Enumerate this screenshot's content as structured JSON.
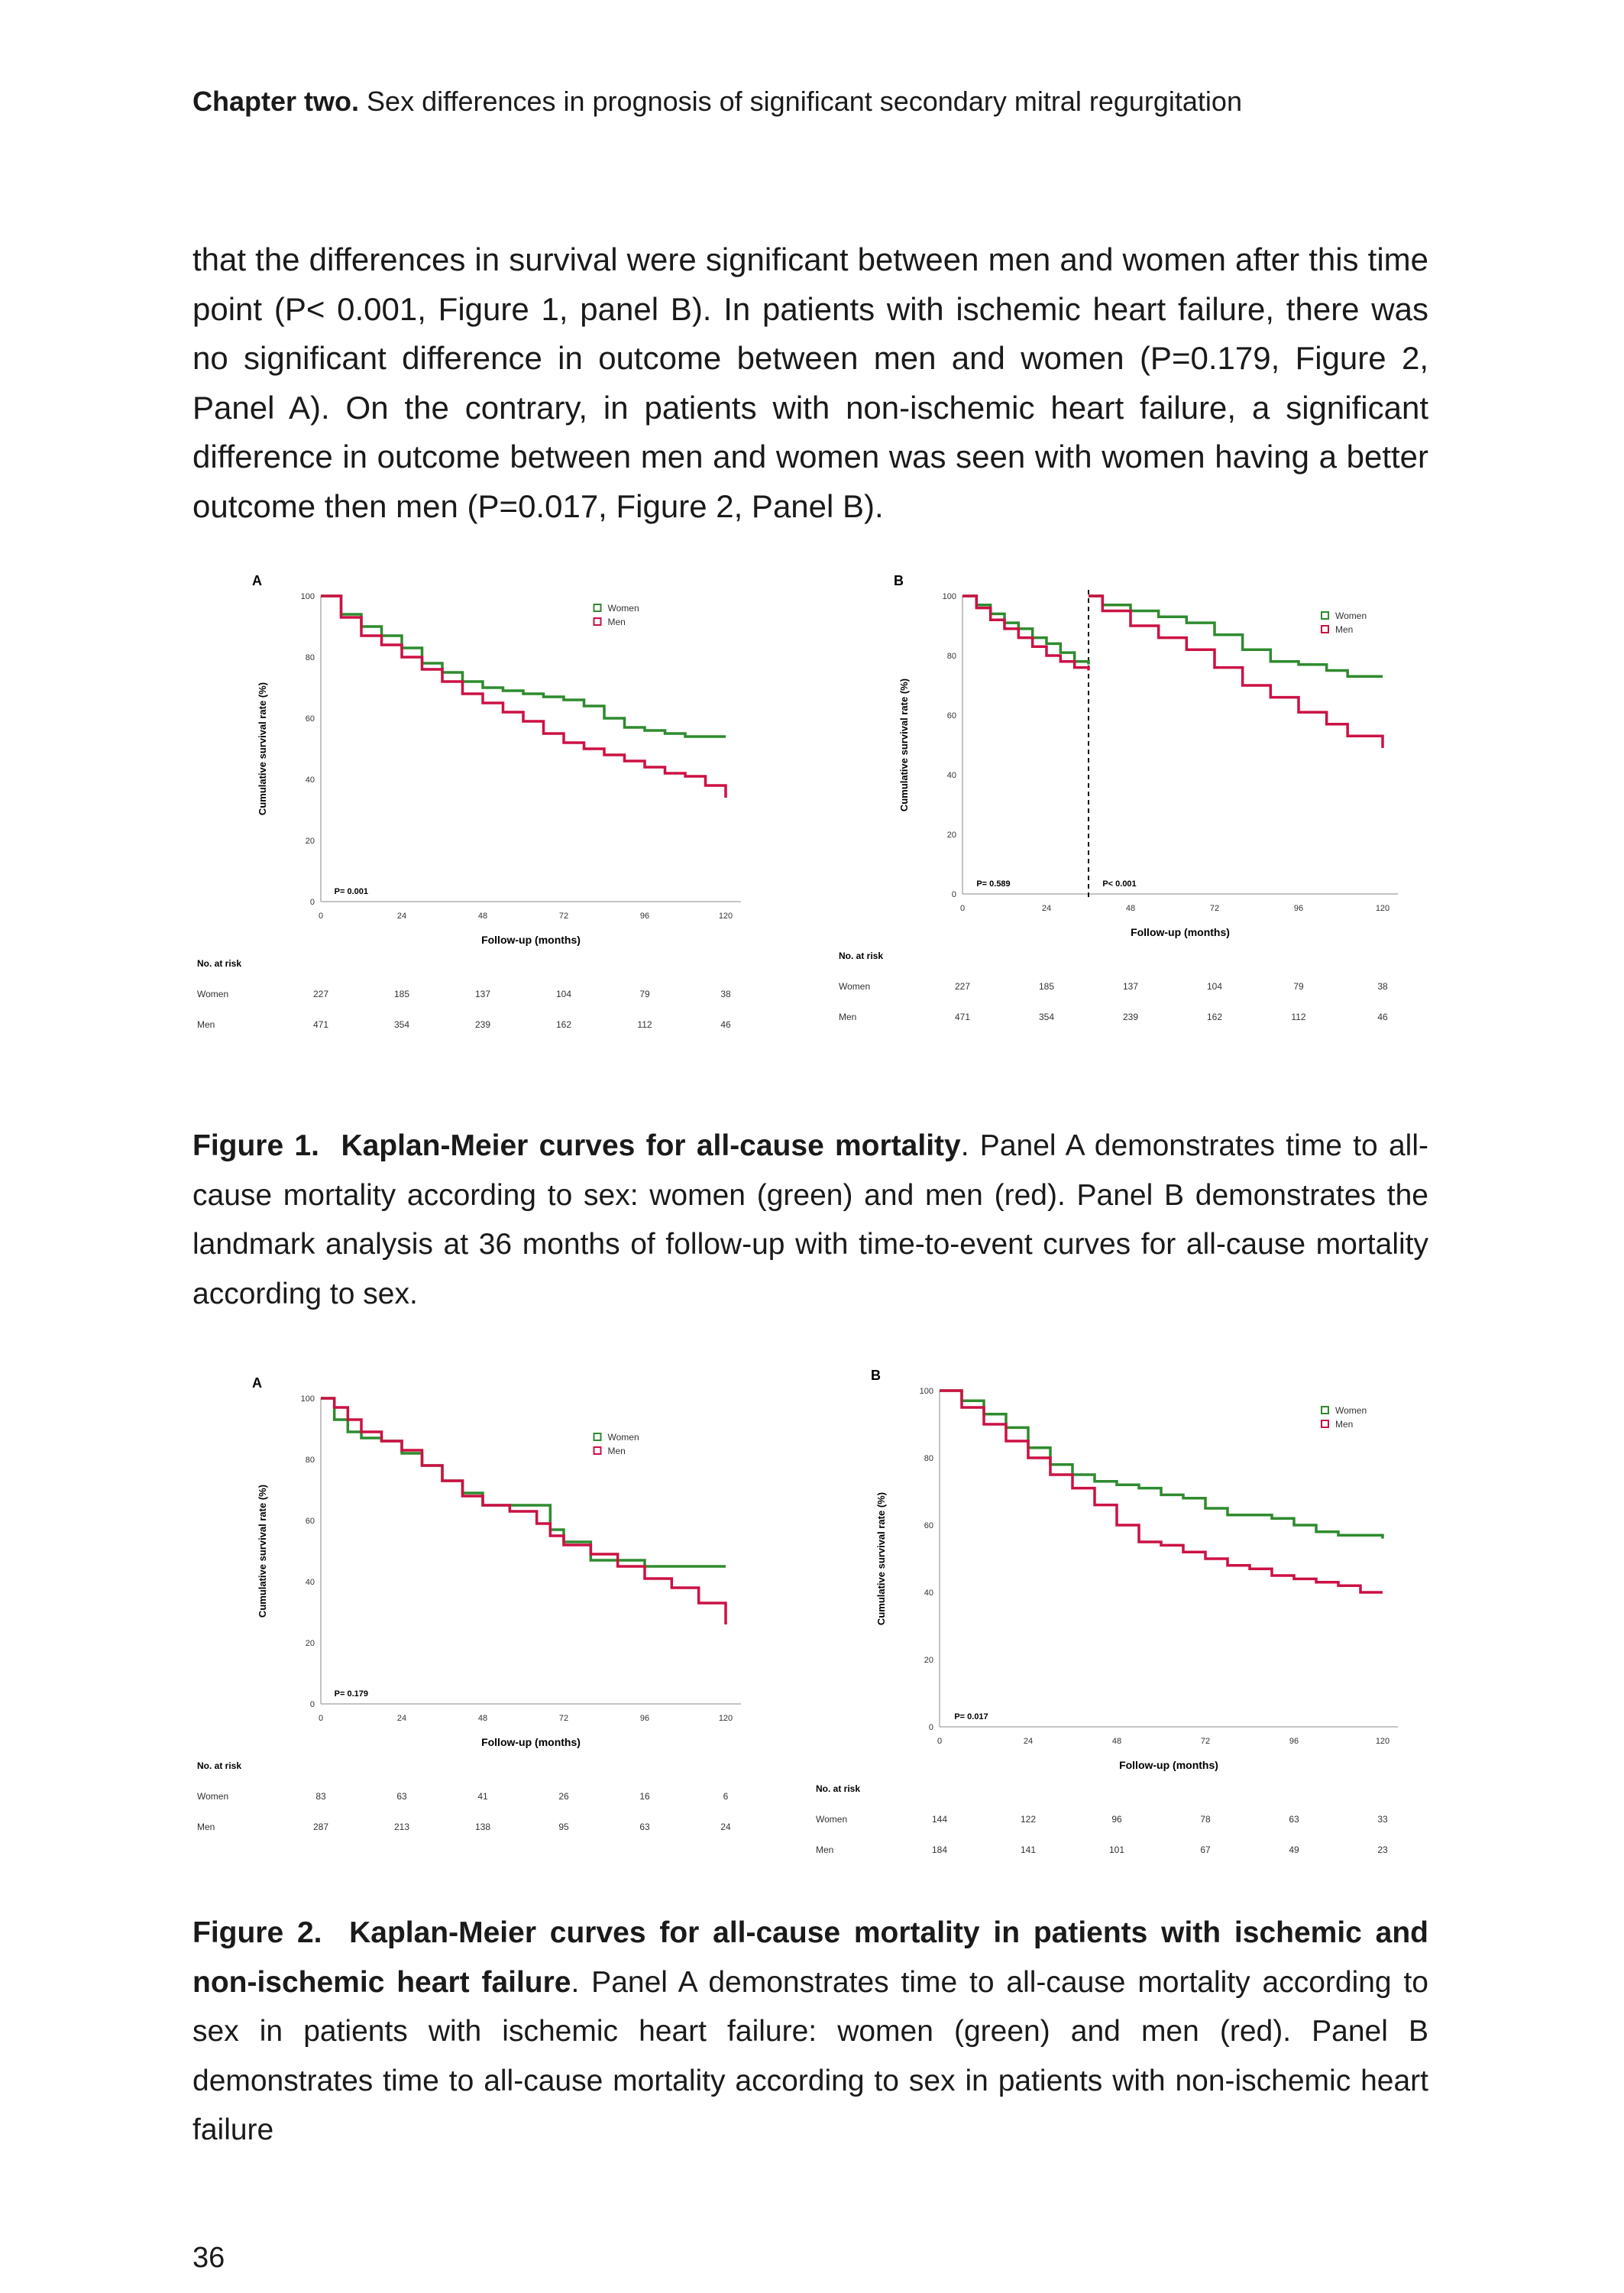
{
  "header": {
    "chapter": "Chapter two.",
    "title": "Sex differences in prognosis of significant secondary mitral regurgitation"
  },
  "body": {
    "paragraph": "that the differences in survival were significant between men and women after this time point (P< 0.001, Figure 1, panel B). In patients with ischemic heart failure, there was no significant difference in outcome between men and women (P=0.179, Figure 2, Panel A). On the contrary, in patients with non-ischemic heart failure, a significant difference in outcome between men and women was seen with women having a better outcome then men (P=0.017, Figure 2, Panel B)."
  },
  "figure1": {
    "caption_label": "Figure 1.",
    "caption_title": "Kaplan-Meier curves for all-cause mortality",
    "caption_text": ". Panel A demonstrates time to all-cause mortality according to sex: women (green) and men (red). Panel B demonstrates the landmark analysis at 36 months of follow-up with time-to-event curves for all-cause mortality according to sex."
  },
  "figure2": {
    "caption_label": "Figure 2.",
    "caption_title": "Kaplan-Meier curves for all-cause mortality in patients with ischemic and non-ischemic heart failure",
    "caption_text": ". Panel A demonstrates time to all-cause mortality according to sex in patients with ischemic heart failure: women (green) and men (red). Panel B demonstrates time to all-cause mortality according to sex in patients with non-ischemic heart failure"
  },
  "page_number": "36",
  "colors": {
    "women": "#2e8b2e",
    "men": "#cc1144",
    "axis": "#888888"
  },
  "chart_data": [
    {
      "id": "fig1A",
      "type": "line",
      "panel_label": "A",
      "ylabel": "Cumulative survival rate (%)",
      "xlabel": "Follow-up (months)",
      "xlim": [
        0,
        120
      ],
      "ylim": [
        0,
        100
      ],
      "xticks": [
        0,
        24,
        48,
        72,
        96,
        120
      ],
      "yticks": [
        0,
        20,
        40,
        60,
        80,
        100
      ],
      "p_labels": [
        {
          "text": "P= 0.001",
          "x": 4
        }
      ],
      "legend": [
        "Women",
        "Men"
      ],
      "series": [
        {
          "name": "Women",
          "x": [
            0,
            6,
            12,
            18,
            24,
            30,
            36,
            42,
            48,
            54,
            60,
            66,
            72,
            78,
            84,
            90,
            96,
            102,
            108,
            114,
            120
          ],
          "y": [
            100,
            94,
            90,
            87,
            83,
            78,
            75,
            72,
            70,
            69,
            68,
            67,
            66,
            64,
            60,
            57,
            56,
            55,
            54,
            54,
            54
          ]
        },
        {
          "name": "Men",
          "x": [
            0,
            6,
            12,
            18,
            24,
            30,
            36,
            42,
            48,
            54,
            60,
            66,
            72,
            78,
            84,
            90,
            96,
            102,
            108,
            114,
            120
          ],
          "y": [
            100,
            93,
            87,
            84,
            80,
            76,
            72,
            68,
            65,
            62,
            59,
            55,
            52,
            50,
            48,
            46,
            44,
            42,
            41,
            38,
            34
          ]
        }
      ],
      "risk_table": {
        "title": "No. at risk",
        "rows": [
          {
            "label": "Women",
            "values": [
              "227",
              "185",
              "137",
              "104",
              "79",
              "38"
            ]
          },
          {
            "label": "Men",
            "values": [
              "471",
              "354",
              "239",
              "162",
              "112",
              "46"
            ]
          }
        ]
      }
    },
    {
      "id": "fig1B",
      "type": "line",
      "panel_label": "B",
      "ylabel": "Cumulative survival rate (%)",
      "xlabel": "Follow-up (months)",
      "xlim": [
        0,
        120
      ],
      "ylim": [
        0,
        100
      ],
      "xticks": [
        0,
        24,
        48,
        72,
        96,
        120
      ],
      "yticks": [
        0,
        20,
        40,
        60,
        80,
        100
      ],
      "landmark": 36,
      "p_labels": [
        {
          "text": "P= 0.589",
          "x": 4
        },
        {
          "text": "P< 0.001",
          "x": 40
        }
      ],
      "legend": [
        "Women",
        "Men"
      ],
      "series": [
        {
          "name": "Women",
          "x": [
            0,
            4,
            8,
            12,
            16,
            20,
            24,
            28,
            32,
            36
          ],
          "y": [
            100,
            97,
            94,
            91,
            89,
            86,
            84,
            81,
            78,
            77
          ]
        },
        {
          "name": "Men",
          "x": [
            0,
            4,
            8,
            12,
            16,
            20,
            24,
            28,
            32,
            36
          ],
          "y": [
            100,
            96,
            92,
            89,
            86,
            83,
            80,
            78,
            76,
            75
          ]
        },
        {
          "name": "Women",
          "x": [
            36,
            40,
            48,
            56,
            64,
            72,
            80,
            88,
            96,
            104,
            110,
            120
          ],
          "y": [
            100,
            97,
            95,
            93,
            91,
            87,
            82,
            78,
            77,
            75,
            73,
            73
          ]
        },
        {
          "name": "Men",
          "x": [
            36,
            40,
            48,
            56,
            64,
            72,
            80,
            88,
            96,
            104,
            110,
            120
          ],
          "y": [
            100,
            95,
            90,
            86,
            82,
            76,
            70,
            66,
            61,
            57,
            53,
            49
          ]
        }
      ],
      "risk_table": {
        "title": "No. at risk",
        "rows": [
          {
            "label": "Women",
            "values": [
              "227",
              "185",
              "137",
              "104",
              "79",
              "38"
            ]
          },
          {
            "label": "Men",
            "values": [
              "471",
              "354",
              "239",
              "162",
              "112",
              "46"
            ]
          }
        ]
      }
    },
    {
      "id": "fig2A",
      "type": "line",
      "panel_label": "A",
      "ylabel": "Cumulative survival rate (%)",
      "xlabel": "Follow-up (months)",
      "xlim": [
        0,
        120
      ],
      "ylim": [
        0,
        100
      ],
      "xticks": [
        0,
        24,
        48,
        72,
        96,
        120
      ],
      "yticks": [
        0,
        20,
        40,
        60,
        80,
        100
      ],
      "p_labels": [
        {
          "text": "P= 0.179",
          "x": 4
        }
      ],
      "legend": [
        "Women",
        "Men"
      ],
      "series": [
        {
          "name": "Women",
          "x": [
            0,
            4,
            8,
            12,
            18,
            24,
            30,
            36,
            42,
            48,
            56,
            64,
            68,
            72,
            80,
            88,
            96,
            104,
            112,
            120
          ],
          "y": [
            100,
            93,
            89,
            87,
            86,
            82,
            78,
            73,
            69,
            65,
            65,
            65,
            57,
            53,
            47,
            47,
            45,
            45,
            45,
            45
          ]
        },
        {
          "name": "Men",
          "x": [
            0,
            4,
            8,
            12,
            18,
            24,
            30,
            36,
            42,
            48,
            56,
            64,
            68,
            72,
            80,
            88,
            96,
            104,
            112,
            120
          ],
          "y": [
            100,
            97,
            93,
            89,
            86,
            83,
            78,
            73,
            68,
            65,
            63,
            59,
            55,
            52,
            49,
            45,
            41,
            38,
            33,
            26
          ]
        }
      ],
      "risk_table": {
        "title": "No. at risk",
        "rows": [
          {
            "label": "Women",
            "values": [
              "83",
              "63",
              "41",
              "26",
              "16",
              "6"
            ]
          },
          {
            "label": "Men",
            "values": [
              "287",
              "213",
              "138",
              "95",
              "63",
              "24"
            ]
          }
        ]
      }
    },
    {
      "id": "fig2B",
      "type": "line",
      "panel_label": "B",
      "ylabel": "Cumulative survival rate (%)",
      "xlabel": "Follow-up (months)",
      "xlim": [
        0,
        120
      ],
      "ylim": [
        0,
        100
      ],
      "xticks": [
        0,
        24,
        48,
        72,
        96,
        120
      ],
      "yticks": [
        0,
        20,
        40,
        60,
        80,
        100
      ],
      "p_labels": [
        {
          "text": "P= 0.017",
          "x": 4
        }
      ],
      "legend": [
        "Women",
        "Men"
      ],
      "series": [
        {
          "name": "Women",
          "x": [
            0,
            6,
            12,
            18,
            24,
            30,
            36,
            42,
            48,
            54,
            60,
            66,
            72,
            78,
            84,
            90,
            96,
            102,
            108,
            114,
            120
          ],
          "y": [
            100,
            97,
            93,
            89,
            83,
            78,
            75,
            73,
            72,
            71,
            69,
            68,
            65,
            63,
            63,
            62,
            60,
            58,
            57,
            57,
            56
          ]
        },
        {
          "name": "Men",
          "x": [
            0,
            6,
            12,
            18,
            24,
            30,
            36,
            42,
            48,
            54,
            60,
            66,
            72,
            78,
            84,
            90,
            96,
            102,
            108,
            114,
            120
          ],
          "y": [
            100,
            95,
            90,
            85,
            80,
            75,
            71,
            66,
            60,
            55,
            54,
            52,
            50,
            48,
            47,
            45,
            44,
            43,
            42,
            40,
            40
          ]
        }
      ],
      "risk_table": {
        "title": "No. at risk",
        "rows": [
          {
            "label": "Women",
            "values": [
              "144",
              "122",
              "96",
              "78",
              "63",
              "33"
            ]
          },
          {
            "label": "Men",
            "values": [
              "184",
              "141",
              "101",
              "67",
              "49",
              "23"
            ]
          }
        ]
      }
    }
  ]
}
